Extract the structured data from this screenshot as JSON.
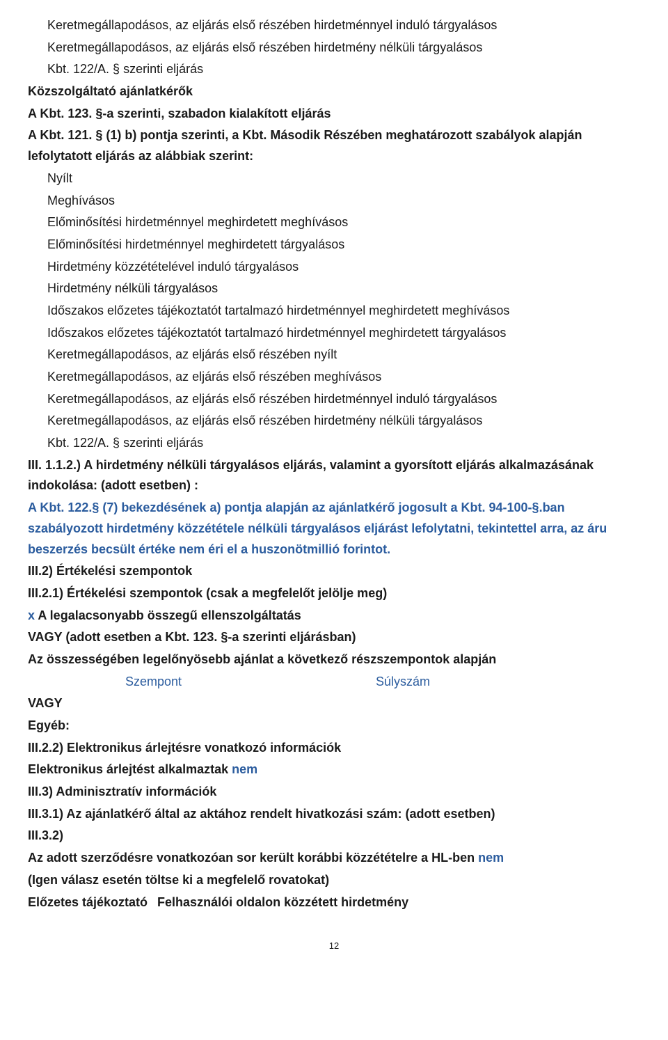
{
  "lines": [
    {
      "text": "Keretmegállapodásos, az eljárás első részében hirdetménnyel induló tárgyalásos",
      "classes": "line indent1"
    },
    {
      "text": "Keretmegállapodásos, az eljárás első részében hirdetmény nélküli tárgyalásos",
      "classes": "line indent1"
    },
    {
      "text": "Kbt. 122/A. § szerinti eljárás",
      "classes": "line indent1"
    },
    {
      "text": "Közszolgáltató ajánlatkérők",
      "classes": "line bold"
    },
    {
      "text": " A Kbt. 123. §-a szerinti, szabadon kialakított eljárás",
      "classes": "line bold"
    },
    {
      "text": "A Kbt. 121. § (1) b) pontja szerinti, a Kbt. Második Részében meghatározott szabályok alapján lefolytatott eljárás az alábbiak szerint:",
      "classes": "line bold"
    },
    {
      "text": "Nyílt",
      "classes": "line indent1"
    },
    {
      "text": "Meghívásos",
      "classes": "line indent1"
    },
    {
      "text": "Előminősítési hirdetménnyel meghirdetett meghívásos",
      "classes": "line indent1"
    },
    {
      "text": "Előminősítési hirdetménnyel meghirdetett tárgyalásos",
      "classes": "line indent1"
    },
    {
      "text": "Hirdetmény közzétételével induló tárgyalásos",
      "classes": "line indent1"
    },
    {
      "text": "Hirdetmény nélküli tárgyalásos",
      "classes": "line indent1"
    },
    {
      "text": "Időszakos előzetes tájékoztatót tartalmazó hirdetménnyel meghirdetett meghívásos",
      "classes": "line indent1"
    },
    {
      "text": "Időszakos előzetes tájékoztatót tartalmazó hirdetménnyel meghirdetett tárgyalásos",
      "classes": "line indent1"
    },
    {
      "text": "Keretmegállapodásos, az eljárás első részében nyílt",
      "classes": "line indent1"
    },
    {
      "text": "Keretmegállapodásos, az eljárás első részében meghívásos",
      "classes": "line indent1"
    },
    {
      "text": "Keretmegállapodásos, az eljárás első részében hirdetménnyel induló tárgyalásos",
      "classes": "line indent1"
    },
    {
      "text": "Keretmegállapodásos, az eljárás első részében hirdetmény nélküli tárgyalásos",
      "classes": "line indent1"
    },
    {
      "text": "Kbt. 122/A. § szerinti eljárás",
      "classes": "line indent1"
    },
    {
      "text": "III. 1.1.2.) A hirdetmény nélküli tárgyalásos eljárás, valamint a gyorsított eljárás alkalmazásának indokolása: (adott esetben) :",
      "classes": "line bold"
    },
    {
      "text": "A Kbt. 122.§ (7) bekezdésének a) pontja alapján az ajánlatkérő jogosult a Kbt. 94-100-§.ban szabályozott hirdetmény közzététele nélküli tárgyalásos eljárást lefolytatni, tekintettel arra, az áru beszerzés becsült értéke nem éri el a huszonötmillió forintot.",
      "classes": "line bold blue"
    },
    {
      "text": "III.2) Értékelési szempontok",
      "classes": "line bold"
    },
    {
      "text": "III.2.1) Értékelési szempontok (csak a megfelelőt jelölje meg)",
      "classes": "line bold"
    }
  ],
  "mixed_line_1": {
    "prefix": "x",
    "rest": " A legalacsonyabb összegű ellenszolgáltatás"
  },
  "line_vagy1": "VAGY (adott esetben a Kbt. 123. §-a szerinti eljárásban)",
  "line_osszesseg": " Az összességében legelőnyösebb ajánlat a következő részszempontok alapján",
  "table_header": {
    "left": "Szempont",
    "right": "Súlyszám"
  },
  "line_vagy2": "VAGY",
  "line_egyeb": " Egyéb:",
  "line_iii22": "III.2.2) Elektronikus árlejtésre vonatkozó információk",
  "mixed_line_2": {
    "prefix": "Elektronikus árlejtést alkalmaztak ",
    "suffix": "nem"
  },
  "line_iii3": "III.3) Adminisztratív információk",
  "line_iii31": "III.3.1) Az ajánlatkérő által az aktához rendelt hivatkozási szám: (adott esetben)",
  "line_iii32": "III.3.2)",
  "mixed_line_3": {
    "prefix": "Az adott szerződésre vonatkozóan sor került korábbi közzétételre a HL-ben ",
    "suffix": "nem"
  },
  "line_igen": "(Igen válasz esetén töltse ki a megfelelő rovatokat)",
  "footer": {
    "left": " Előzetes tájékoztató",
    "right": "Felhasználói oldalon közzétett hirdetmény"
  },
  "page_number": "12",
  "colors": {
    "text": "#1a1a1a",
    "blue": "#2b5c9e",
    "background": "#ffffff"
  }
}
